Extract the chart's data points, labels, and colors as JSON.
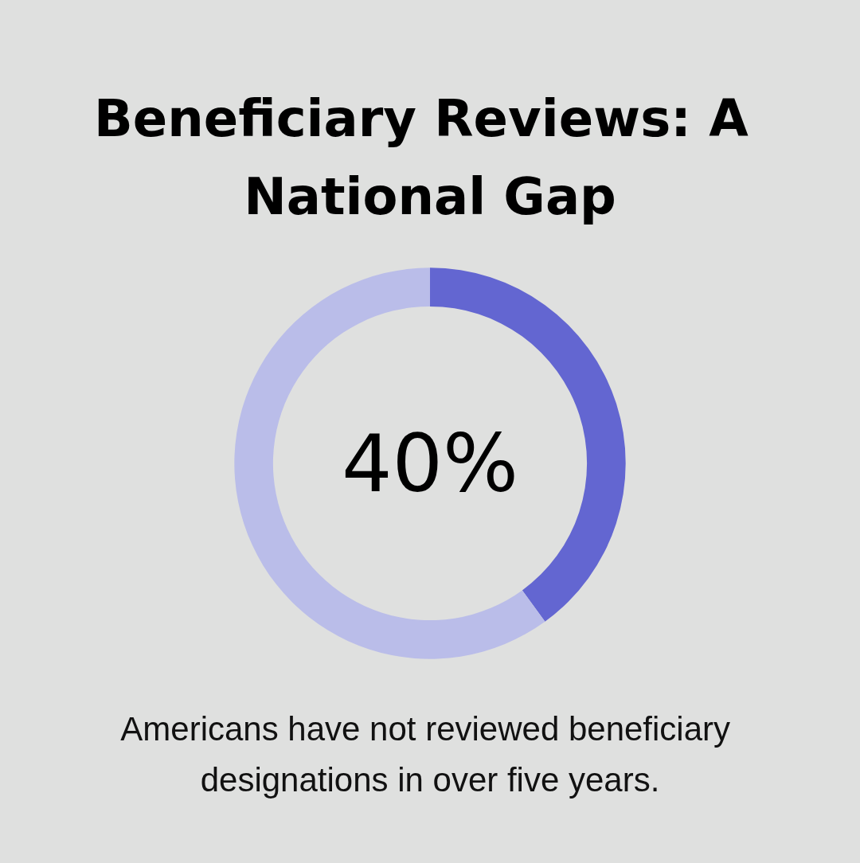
{
  "chart_data": {
    "type": "donut",
    "title": "Beneficiary Reviews: A National Gap",
    "categories": [
      null,
      null
    ],
    "values": [
      40,
      60
    ],
    "colors": [
      "#6366d1",
      "#babde9"
    ],
    "value_labels": [
      "40%",
      null
    ],
    "annotations": [
      "Americans have not reviewed beneficiary designations in over five years."
    ]
  }
}
